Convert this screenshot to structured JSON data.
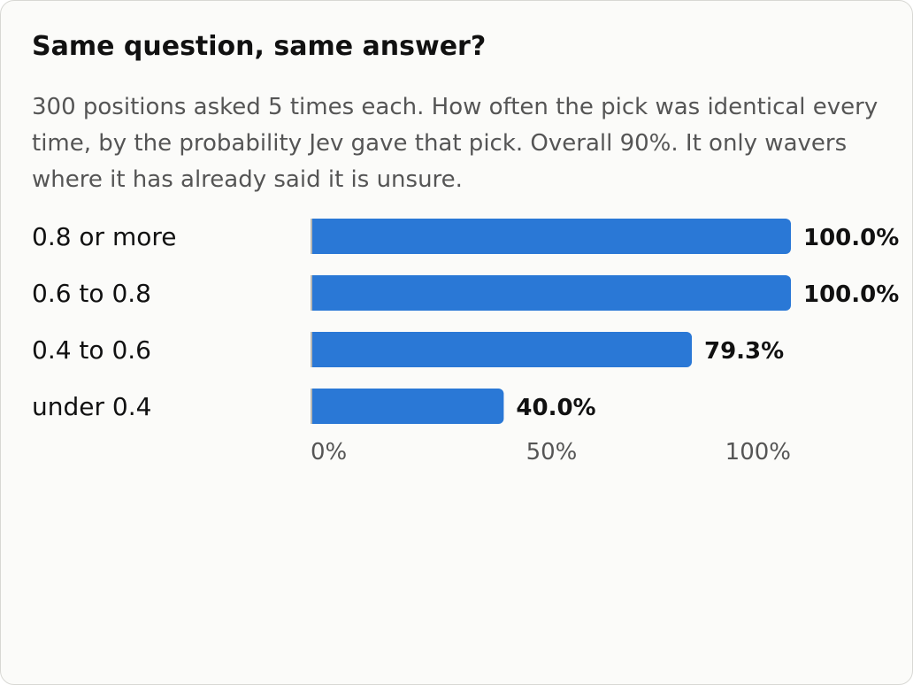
{
  "card": {
    "title": "Same question, same answer?",
    "subtitle": "300 positions asked 5 times each. How often the pick was identical every time, by the probability Jev gave that pick. Overall 90%. It only wavers where it has already said it is unsure."
  },
  "chart_data": {
    "type": "bar",
    "orientation": "horizontal",
    "categories": [
      "0.8 or more",
      "0.6 to 0.8",
      "0.4 to 0.6",
      "under 0.4"
    ],
    "values": [
      100.0,
      100.0,
      79.3,
      40.0
    ],
    "value_labels": [
      "100.0%",
      "100.0%",
      "79.3%",
      "40.0%"
    ],
    "xlim": [
      0,
      100
    ],
    "xticks": [
      0,
      50,
      100
    ],
    "xtick_labels": [
      "0%",
      "50%",
      "100%"
    ],
    "grid": false,
    "colors": {
      "bar": "#2a78d6",
      "baseline": "#b8b8b4"
    }
  }
}
